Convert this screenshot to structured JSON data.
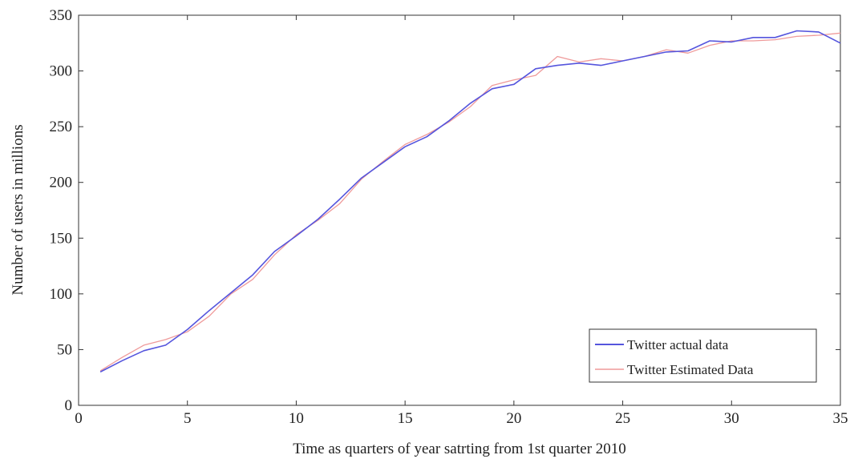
{
  "chart_data": {
    "type": "line",
    "title": "",
    "xlabel": "Time as quarters of year satrting from 1st quarter 2010",
    "ylabel": "Number of users in millions",
    "xlim": [
      0,
      35
    ],
    "ylim": [
      0,
      350
    ],
    "xticks": [
      0,
      5,
      10,
      15,
      20,
      25,
      30,
      35
    ],
    "yticks": [
      0,
      50,
      100,
      150,
      200,
      250,
      300,
      350
    ],
    "grid": false,
    "legend_position": "bottom-right",
    "series": [
      {
        "name": "Twitter actual data",
        "color": "#5555dd",
        "x": [
          1,
          2,
          3,
          4,
          5,
          6,
          7,
          8,
          9,
          10,
          11,
          12,
          13,
          14,
          15,
          16,
          17,
          18,
          19,
          20,
          21,
          22,
          23,
          24,
          25,
          26,
          27,
          28,
          29,
          30,
          31,
          32,
          33,
          34,
          35
        ],
        "values": [
          30,
          40,
          49,
          54,
          68,
          85,
          101,
          117,
          138,
          152,
          167,
          185,
          204,
          218,
          232,
          241,
          255,
          271,
          284,
          288,
          302,
          305,
          307,
          305,
          309,
          313,
          317,
          318,
          327,
          326,
          330,
          330,
          336,
          335,
          325
        ]
      },
      {
        "name": "Twitter Estimated Data",
        "color": "#ef9a9a",
        "x": [
          1,
          2,
          3,
          4,
          5,
          6,
          7,
          8,
          9,
          10,
          11,
          12,
          13,
          14,
          15,
          16,
          17,
          18,
          19,
          20,
          21,
          22,
          23,
          24,
          25,
          26,
          27,
          28,
          29,
          30,
          31,
          32,
          33,
          34,
          35
        ],
        "values": [
          31,
          43,
          54,
          59,
          66,
          80,
          100,
          113,
          135,
          153,
          166,
          181,
          203,
          219,
          234,
          243,
          254,
          268,
          287,
          292,
          296,
          313,
          308,
          311,
          309,
          313,
          319,
          316,
          323,
          327,
          327,
          328,
          331,
          332,
          334
        ]
      }
    ]
  }
}
